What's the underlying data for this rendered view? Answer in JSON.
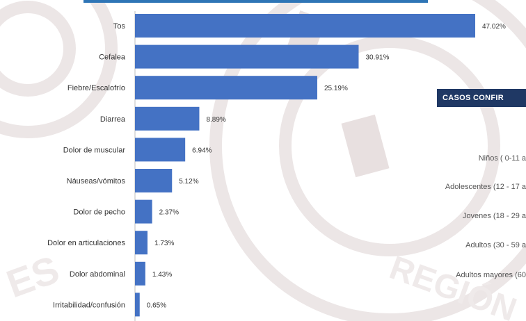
{
  "colors": {
    "bar": "#4472C4",
    "accent": "#2E75B6",
    "header": "#1F3864",
    "text": "#333333",
    "watermark": "#ECE6E6"
  },
  "watermark": {
    "text_left": "ES",
    "text_right": "REGIÓN"
  },
  "chart_data": {
    "type": "bar",
    "orientation": "horizontal",
    "categories": [
      "Tos",
      "Cefalea",
      "Fiebre/Escalofrío",
      "Diarrea",
      "Dolor de muscular",
      "Náuseas/vómitos",
      "Dolor de pecho",
      "Dolor en articulaciones",
      "Dolor abdominal",
      "Irritabilidad/confusión"
    ],
    "values": [
      47.02,
      30.91,
      25.19,
      8.89,
      6.94,
      5.12,
      2.37,
      1.73,
      1.43,
      0.65
    ],
    "value_labels": [
      "47.02%",
      "30.91%",
      "25.19%",
      "8.89%",
      "6.94%",
      "5.12%",
      "2.37%",
      "1.73%",
      "1.43%",
      "0.65%"
    ],
    "xlim": [
      0,
      50
    ],
    "grid": false,
    "legend": false
  },
  "side_panel": {
    "header": "CASOS CONFIR",
    "age_groups": [
      "Niños ( 0-11 a",
      "Adolescentes (12 - 17 a",
      "Jovenes (18 - 29 a",
      "Adultos (30 - 59 a",
      "Adultos mayores (60"
    ]
  }
}
